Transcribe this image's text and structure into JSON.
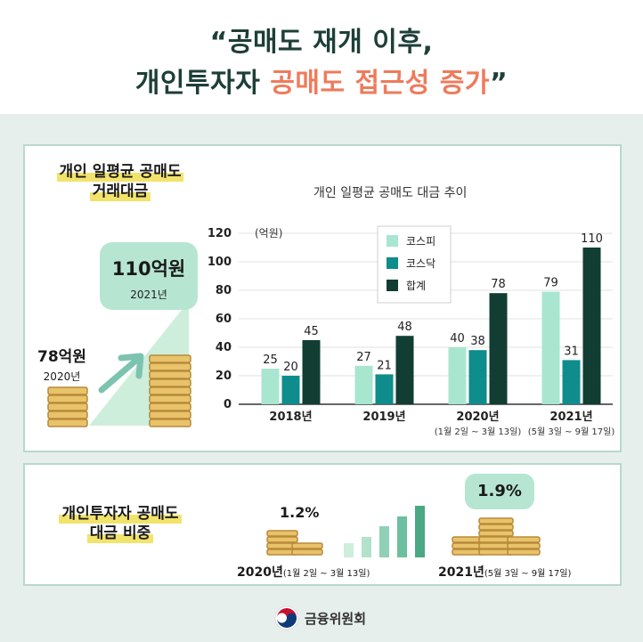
{
  "header": {
    "title_line1": "“공매도 재개 이후,",
    "title_line2_plain": "개인투자자 ",
    "title_line2_highlight": "공매도 접근성 증가",
    "title_line2_close": "”",
    "highlight_color": "#ee7b5c"
  },
  "panel1": {
    "label_line1": "개인 일평균 공매도",
    "label_line2": "거래대금",
    "badge_amount": "110억원",
    "badge_year": "2021년",
    "start_amount": "78억원",
    "start_year": "2020년",
    "chart_title": "개인 일평균 공매도 대금 추이"
  },
  "chart_data": {
    "type": "bar",
    "title": "개인 일평균 공매도 대금 추이",
    "ylabel": "(억원)",
    "ylim": [
      0,
      120
    ],
    "yticks": [
      0,
      20,
      40,
      60,
      80,
      100,
      120
    ],
    "categories": [
      "2018년",
      "2019년",
      "2020년",
      "2021년"
    ],
    "category_sublabels": [
      "",
      "",
      "(1월 2일 ~ 3월 13일)",
      "(5월 3일 ~ 9월 17일)"
    ],
    "series": [
      {
        "name": "코스피",
        "color": "#a8e6d0",
        "values": [
          25,
          27,
          40,
          79
        ]
      },
      {
        "name": "코스닥",
        "color": "#0f8c8c",
        "values": [
          20,
          21,
          38,
          31
        ]
      },
      {
        "name": "합계",
        "color": "#123d33",
        "values": [
          45,
          48,
          78,
          110
        ]
      }
    ],
    "legend": "top-center",
    "grid": true
  },
  "panel2": {
    "label_line1": "개인투자자 공매도",
    "label_line2": "대금 비중",
    "pct_2020": "1.2%",
    "pct_2021": "1.9%",
    "period_2020_year": "2020년",
    "period_2020_range": "(1월 2일 ~ 3월 13일)",
    "period_2021_year": "2021년",
    "period_2021_range": "(5월 3일 ~ 9월 17일)"
  },
  "footer": {
    "org_name": "금융위원회"
  },
  "colors": {
    "background": "#e6efec",
    "panel_border": "#b9d8cc",
    "mint": "#b6e6d2",
    "coin": "#e8c36a",
    "coin_edge": "#b8893a"
  }
}
